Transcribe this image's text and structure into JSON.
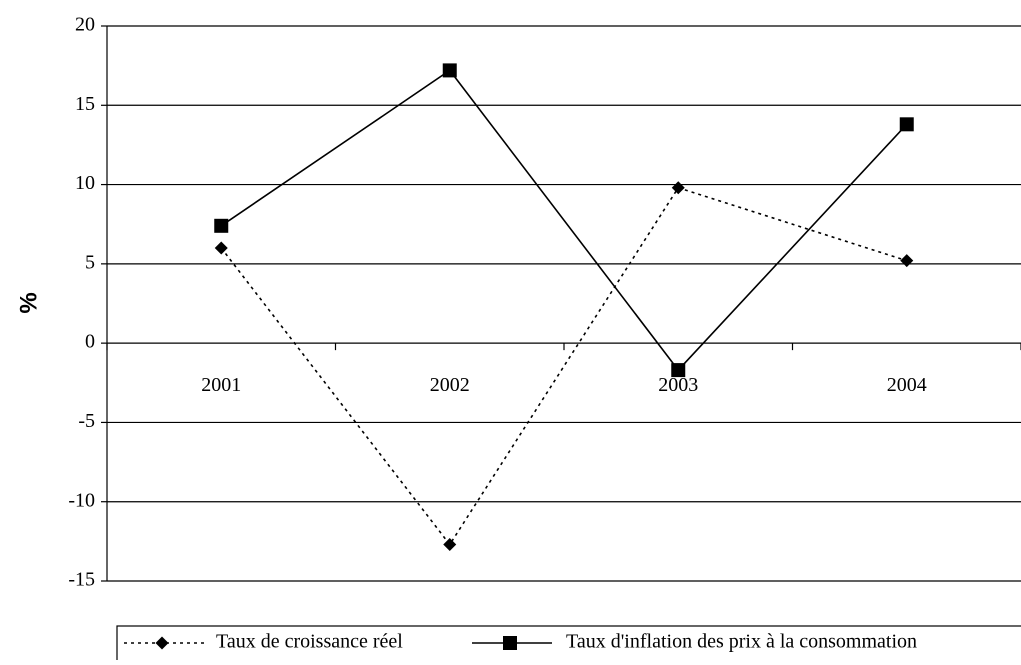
{
  "chart_data": {
    "type": "line",
    "title": "",
    "xlabel": "",
    "ylabel": "%",
    "categories": [
      "2001",
      "2002",
      "2003",
      "2004"
    ],
    "ylim": [
      -15,
      20
    ],
    "yticks": [
      "20",
      "15",
      "10",
      "5",
      "0",
      "-5",
      "-10",
      "-15"
    ],
    "ytick_values": [
      20,
      15,
      10,
      5,
      0,
      -5,
      -10,
      -15
    ],
    "grid": true,
    "legend_position": "bottom",
    "series": [
      {
        "name": "Taux de croissance réel",
        "values": [
          6.0,
          -12.7,
          9.8,
          5.2
        ],
        "line_style": "dotted",
        "marker": "diamond",
        "color": "#000000"
      },
      {
        "name": "Taux d'inflation des prix  à la consommation",
        "values": [
          7.4,
          17.2,
          -1.7,
          13.8
        ],
        "line_style": "solid",
        "marker": "square",
        "color": "#000000"
      }
    ]
  }
}
